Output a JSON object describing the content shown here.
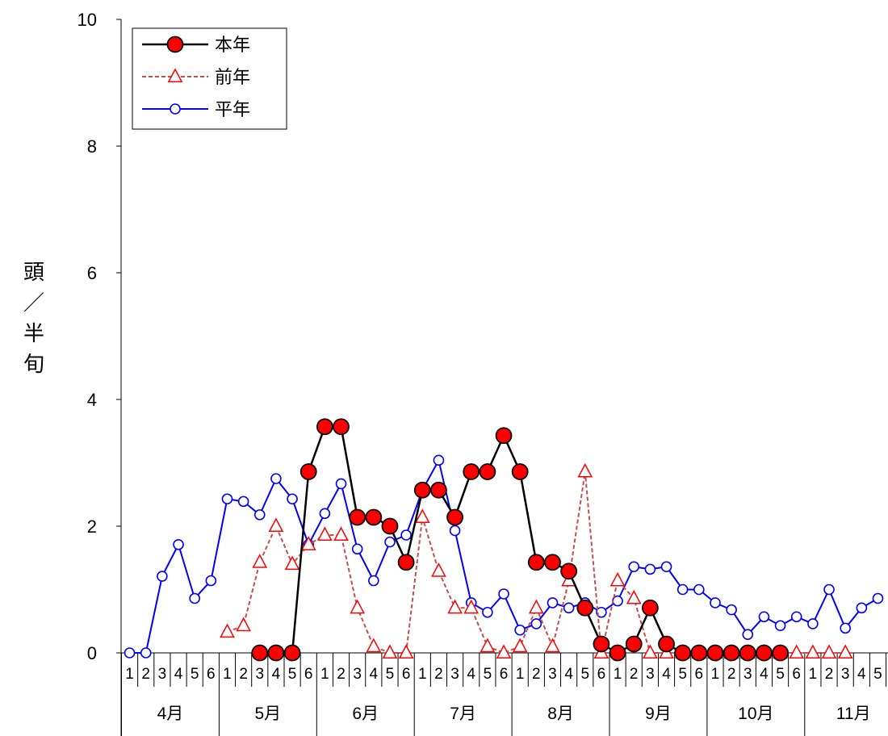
{
  "chart_data": {
    "type": "line",
    "title": "",
    "ylabel": "頭／半旬",
    "ylabel_chars": [
      "頭",
      "／",
      "半",
      "旬"
    ],
    "ylim": [
      0,
      10
    ],
    "yticks": [
      0,
      2,
      4,
      6,
      8,
      10
    ],
    "ytick_labels": [
      "0",
      "2",
      "4",
      "6",
      "8",
      "10"
    ],
    "grid": false,
    "legend_position": "top-left",
    "months": [
      "4月",
      "5月",
      "6月",
      "7月",
      "8月",
      "9月",
      "10月",
      "11月"
    ],
    "periods_per_month": 6,
    "visible_periods_last_month": 5,
    "x_period_labels": [
      "1",
      "2",
      "3",
      "4",
      "5",
      "6",
      "1",
      "2",
      "3",
      "4",
      "5",
      "6",
      "1",
      "2",
      "3",
      "4",
      "5",
      "6",
      "1",
      "2",
      "3",
      "4",
      "5",
      "6",
      "1",
      "2",
      "3",
      "4",
      "5",
      "6",
      "1",
      "2",
      "3",
      "4",
      "5",
      "6",
      "1",
      "2",
      "3",
      "4",
      "5",
      "6",
      "1",
      "2",
      "3",
      "4",
      "5"
    ],
    "series": [
      {
        "name": "本年",
        "color": "#000000",
        "marker_fill": "#ff0000",
        "marker": "circle",
        "values": [
          null,
          null,
          null,
          null,
          null,
          null,
          null,
          null,
          0,
          0,
          0,
          2.86,
          3.57,
          3.57,
          2.14,
          2.14,
          2.0,
          1.43,
          2.57,
          2.57,
          2.14,
          2.86,
          2.86,
          3.43,
          2.86,
          1.43,
          1.43,
          1.29,
          0.71,
          0.14,
          0,
          0.14,
          0.71,
          0.14,
          0,
          0,
          0,
          0,
          0,
          0,
          0,
          null,
          null,
          null,
          null,
          null,
          null
        ]
      },
      {
        "name": "前年",
        "color": "#c0504d",
        "marker": "triangle",
        "dashed": true,
        "values": [
          null,
          null,
          null,
          null,
          null,
          null,
          0.33,
          0.43,
          1.43,
          2.0,
          1.4,
          1.71,
          1.86,
          1.86,
          0.71,
          0.1,
          0,
          0,
          2.14,
          1.29,
          0.71,
          0.71,
          0.1,
          0,
          0.1,
          0.71,
          0.1,
          1.14,
          2.86,
          0,
          1.14,
          0.86,
          0,
          0,
          0,
          0,
          0,
          0,
          0,
          0,
          0,
          0,
          0,
          0,
          0,
          null,
          null
        ]
      },
      {
        "name": "平年",
        "color": "#0000ff",
        "marker": "circle-open",
        "values": [
          0,
          0,
          1.21,
          1.71,
          0.86,
          1.14,
          2.43,
          2.39,
          2.18,
          2.75,
          2.43,
          1.71,
          2.2,
          2.67,
          1.64,
          1.14,
          1.75,
          1.86,
          2.57,
          3.04,
          1.93,
          0.79,
          0.64,
          0.93,
          0.36,
          0.46,
          0.79,
          0.71,
          0.79,
          0.64,
          0.82,
          1.36,
          1.32,
          1.36,
          1.0,
          1.0,
          0.79,
          0.68,
          0.29,
          0.57,
          0.43,
          0.57,
          0.46,
          1.0,
          0.39,
          0.71,
          0.86
        ]
      }
    ]
  }
}
